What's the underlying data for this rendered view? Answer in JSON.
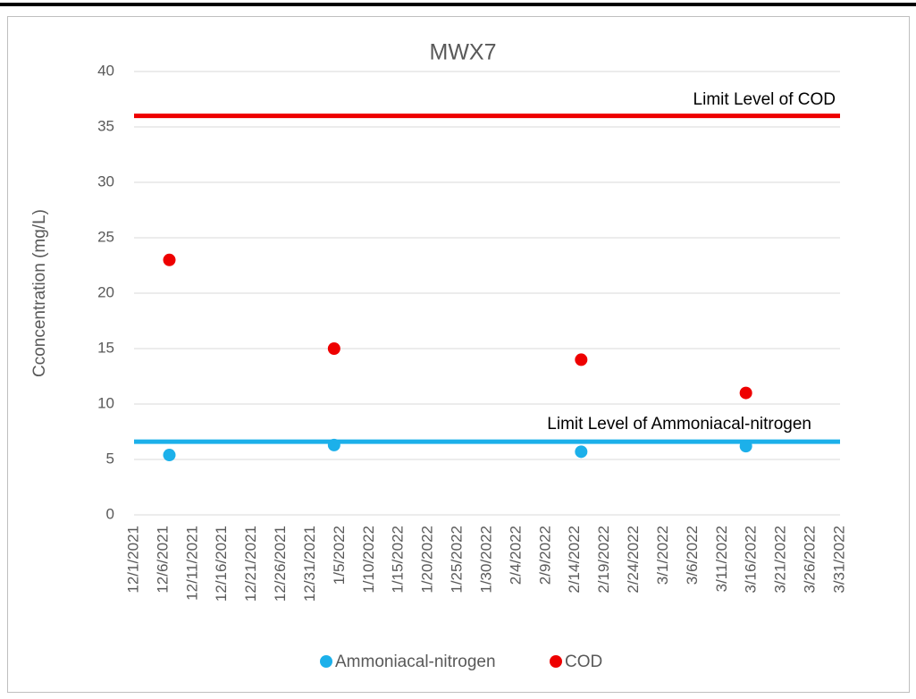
{
  "chart_data": {
    "type": "scatter",
    "title": "MWX7",
    "y_label": "Cconcentration (mg/L)",
    "xlim": [
      "12/1/2021",
      "3/31/2022"
    ],
    "xticks": [
      "12/1/2021",
      "12/6/2021",
      "12/11/2021",
      "12/16/2021",
      "12/21/2021",
      "12/26/2021",
      "12/31/2021",
      "1/5/2022",
      "1/10/2022",
      "1/15/2022",
      "1/20/2022",
      "1/25/2022",
      "1/30/2022",
      "2/4/2022",
      "2/9/2022",
      "2/14/2022",
      "2/19/2022",
      "2/24/2022",
      "3/1/2022",
      "3/6/2022",
      "3/11/2022",
      "3/16/2022",
      "3/21/2022",
      "3/26/2022",
      "3/31/2022"
    ],
    "ylim": [
      0,
      40
    ],
    "yticks": [
      0,
      5,
      10,
      15,
      20,
      25,
      30,
      35,
      40
    ],
    "grid": true,
    "series": [
      {
        "name": "Ammoniacal-nitrogen",
        "color": "#1cb0ea",
        "x": [
          "12/7/2021",
          "1/4/2022",
          "2/15/2022",
          "3/15/2022"
        ],
        "values": [
          5.4,
          6.3,
          5.7,
          6.2
        ]
      },
      {
        "name": "COD",
        "color": "#ee0000",
        "x": [
          "12/7/2021",
          "1/4/2022",
          "2/15/2022",
          "3/15/2022"
        ],
        "values": [
          23,
          15,
          14,
          11
        ]
      }
    ],
    "limits": [
      {
        "label": "Limit Level of COD",
        "value": 36,
        "color": "#ee0000"
      },
      {
        "label": "Limit Level of Ammoniacal-nitrogen",
        "value": 6.6,
        "color": "#1cb0ea"
      }
    ],
    "legend": "bottom"
  }
}
